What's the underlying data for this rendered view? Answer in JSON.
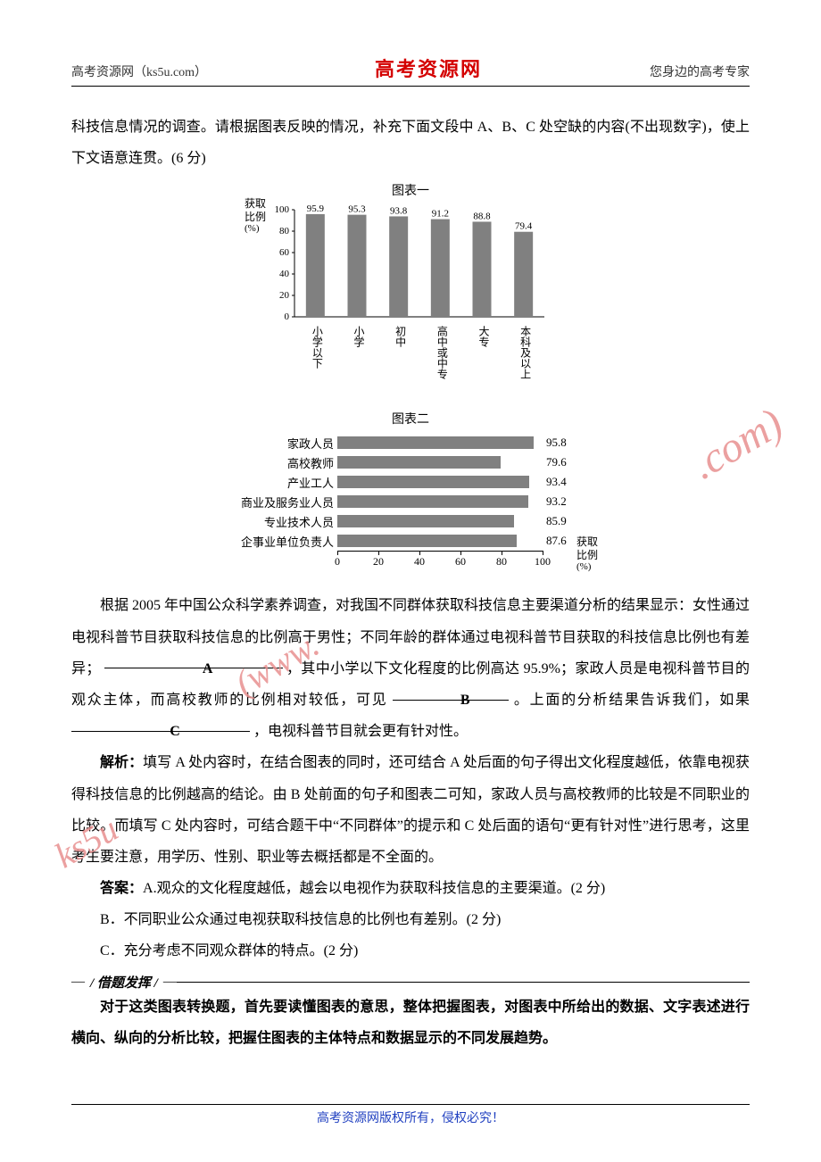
{
  "header": {
    "left": "高考资源网（ks5u.com）",
    "center": "高考资源网",
    "right": "您身边的高考专家"
  },
  "intro": {
    "line1": "科技信息情况的调查。请根据图表反映的情况，补充下面文段中 A、B、C 处空缺的内容(不出现数字)，使上下文语意连贯。(6 分)"
  },
  "chart1": {
    "title": "图表一",
    "type": "bar",
    "y_label_lines": [
      "获取",
      "比例",
      "(%)"
    ],
    "ylim": [
      0,
      100
    ],
    "ytick_step": 20,
    "categories": [
      "小学以下",
      "小学",
      "初中",
      "高中或中专",
      "大专",
      "本科及以上"
    ],
    "values": [
      95.9,
      95.3,
      93.8,
      91.2,
      88.8,
      79.4
    ],
    "bar_color": "#808080",
    "axis_color": "#000000",
    "label_fontsize": 12
  },
  "chart2": {
    "title": "图表二",
    "type": "bar-horizontal",
    "xlim": [
      0,
      100
    ],
    "xtick_step": 20,
    "x_label_lines": [
      "获取",
      "比例",
      "(%)"
    ],
    "categories": [
      "家政人员",
      "高校教师",
      "产业工人",
      "商业及服务业人员",
      "专业技术人员",
      "企事业单位负责人"
    ],
    "values": [
      95.8,
      79.6,
      93.4,
      93.2,
      85.9,
      87.6
    ],
    "bar_color": "#808080",
    "axis_color": "#000000",
    "label_fontsize": 13
  },
  "body": {
    "para1_pre": "根据 2005 年中国公众科学素养调查，对我国不同群体获取科技信息主要渠道分析的结果显示：女性通过电视科普节目获取科技信息的比例高于男性；不同年龄的群体通过电视科普节目获取的科技信息比例也有差异；",
    "para1_mid": "，其中小学以下文化程度的比例高达 95.9%；家政人员是电视科普节目的观众主体，而高校教师的比例相对较低，可见",
    "para1_after_b": "。上面的分析结果告诉我们，如果",
    "para1_tail": "，电视科普节目就会更有针对性。",
    "analysis_label": "解析：",
    "analysis": "填写 A 处内容时，在结合图表的同时，还可结合 A 处后面的句子得出文化程度越低，依靠电视获得科技信息的比例越高的结论。由 B 处前面的句子和图表二可知，家政人员与高校教师的比较是不同职业的比较。而填写 C 处内容时，可结合题干中“不同群体”的提示和 C 处后面的语句“更有针对性”进行思考，这里考生要注意，用学历、性别、职业等去概括都是不全面的。",
    "answer_label": "答案：",
    "answer_a": "A.观众的文化程度越低，越会以电视作为获取科技信息的主要渠道。(2 分)",
    "answer_b": "B．不同职业公众通过电视获取科技信息的比例也有差别。(2 分)",
    "answer_c": "C．充分考虑不同观众群体的特点。(2 分)"
  },
  "divider": {
    "label": "/ 借题发挥 /"
  },
  "tip": "对于这类图表转换题，首先要读懂图表的意思，整体把握图表，对图表中所给出的数据、文字表述进行横向、纵向的分析比较，把握住图表的主体特点和数据显示的不同发展趋势。",
  "footer": "高考资源网版权所有，侵权必究！",
  "watermarks": {
    "w1": ".com)",
    "w2": "(www.",
    "w3": "ks5u"
  },
  "letters": {
    "A": "A",
    "B": "B",
    "C": "C"
  },
  "styling": {
    "page_bg": "#ffffff",
    "text_color": "#000000",
    "accent_red": "#d40000",
    "watermark_color": "#e89090",
    "footer_color": "#2040c0",
    "body_fontsize": 16,
    "line_height": 2.2
  }
}
